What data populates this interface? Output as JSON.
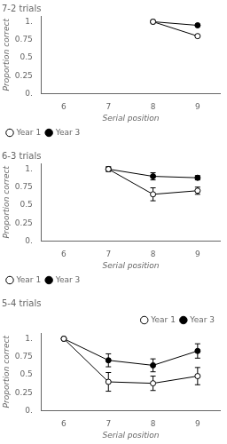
{
  "chart_data": [
    {
      "type": "line",
      "title": "7-2 trials",
      "xlabel": "Serial position",
      "ylabel": "Proportion correct",
      "x": [
        8,
        9
      ],
      "series": [
        {
          "name": "Year 1",
          "color": "#000000",
          "marker": "open_circle",
          "values": [
            1.0,
            0.8
          ],
          "yerr": [
            0.0,
            0.0
          ]
        },
        {
          "name": "Year 3",
          "color": "#000000",
          "marker": "circle",
          "values": [
            1.0,
            0.95
          ],
          "yerr": [
            0.0,
            0.0
          ]
        }
      ],
      "xlim": [
        5.5,
        9.5
      ],
      "xticks": [
        6,
        7,
        8,
        9
      ],
      "ylim": [
        0,
        1.08
      ],
      "yticks": [
        {
          "value": 0.0,
          "label": "0."
        },
        0.25,
        0.5,
        0.75,
        {
          "value": 1.0,
          "label": "1."
        }
      ],
      "grid": false,
      "legend": "lower_left"
    },
    {
      "type": "line",
      "title": "6-3 trials",
      "xlabel": "Serial position",
      "ylabel": "Proportion correct",
      "x": [
        7,
        8,
        9
      ],
      "series": [
        {
          "name": "Year 1",
          "color": "#000000",
          "marker": "open_circle",
          "values": [
            1.0,
            0.65,
            0.7
          ],
          "yerr": [
            0.03,
            0.09,
            0.05
          ]
        },
        {
          "name": "Year 3",
          "color": "#000000",
          "marker": "circle",
          "values": [
            1.0,
            0.9,
            0.88
          ],
          "yerr": [
            0.03,
            0.05,
            0.03
          ]
        }
      ],
      "xlim": [
        5.5,
        9.5
      ],
      "xticks": [
        6,
        7,
        8,
        9
      ],
      "ylim": [
        0,
        1.08
      ],
      "yticks": [
        {
          "value": 0.0,
          "label": "0."
        },
        0.25,
        0.5,
        0.75,
        {
          "value": 1.0,
          "label": "1."
        }
      ],
      "grid": false,
      "legend": "lower_left"
    },
    {
      "type": "line",
      "title": "5-4 trials",
      "xlabel": "Serial position",
      "ylabel": "Proportion correct",
      "x": [
        6,
        7,
        8,
        9
      ],
      "series": [
        {
          "name": "Year 1",
          "color": "#000000",
          "marker": "open_circle",
          "values": [
            1.0,
            0.4,
            0.38,
            0.48
          ],
          "yerr": [
            0.0,
            0.13,
            0.1,
            0.12
          ]
        },
        {
          "name": "Year 3",
          "color": "#000000",
          "marker": "circle",
          "values": [
            1.0,
            0.7,
            0.63,
            0.83
          ],
          "yerr": [
            0.0,
            0.09,
            0.09,
            0.1
          ]
        }
      ],
      "xlim": [
        5.5,
        9.5
      ],
      "xticks": [
        6,
        7,
        8,
        9
      ],
      "ylim": [
        0,
        1.08
      ],
      "yticks": [
        {
          "value": 0.0,
          "label": "0."
        },
        0.25,
        0.5,
        0.75,
        {
          "value": 1.0,
          "label": "1."
        }
      ],
      "grid": false,
      "legend": "upper_right"
    }
  ]
}
